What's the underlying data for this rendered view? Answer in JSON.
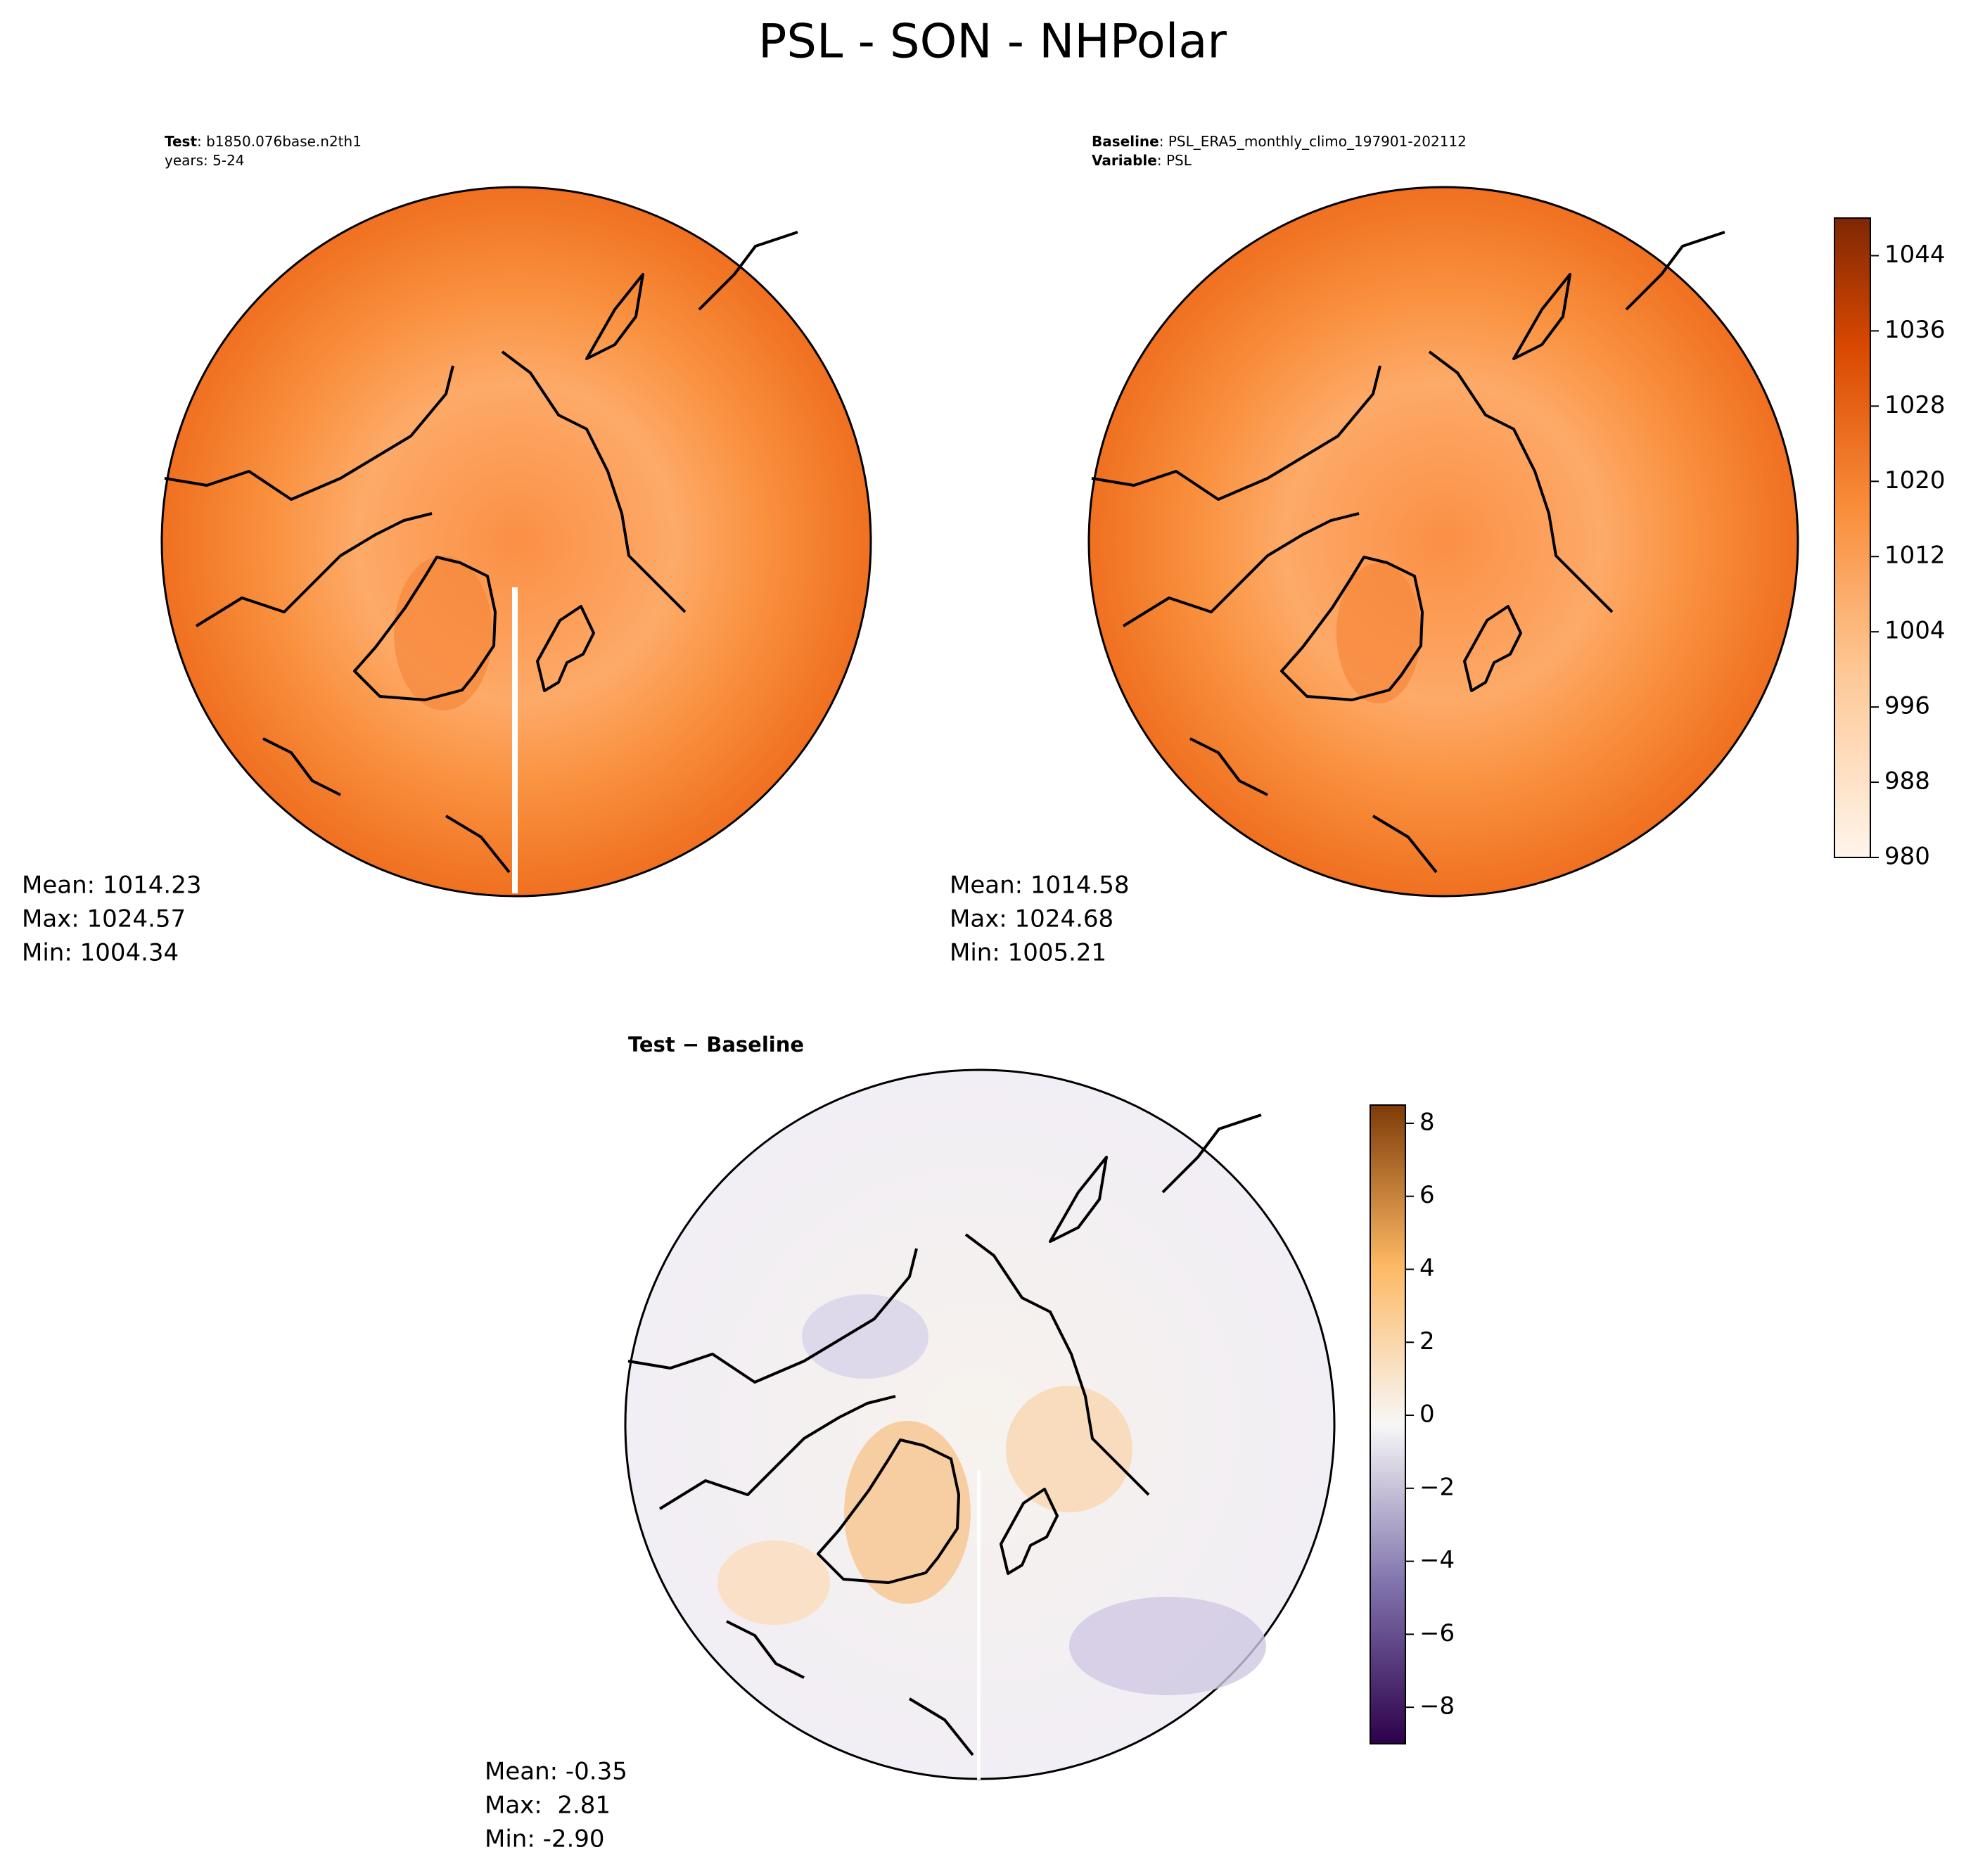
{
  "title": "PSL - SON - NHPolar",
  "panels": [
    {
      "header": [
        {
          "label": "Test",
          "text": ": b1850.076base.n2th1"
        },
        {
          "text": "years: 5-24"
        }
      ],
      "stats": [
        "Mean: 1014.23",
        "Max: 1024.57",
        "Min: 1004.34"
      ]
    },
    {
      "header": [
        {
          "label": "Baseline",
          "text": ": PSL_ERA5_monthly_climo_197901-202112"
        },
        {
          "label": "Variable",
          "text": ": PSL"
        }
      ],
      "stats": [
        "Mean: 1014.58",
        "Max: 1024.68",
        "Min: 1005.21"
      ]
    },
    {
      "header": [
        {
          "label": "Test − Baseline"
        }
      ],
      "stats": [
        "Mean: -0.35",
        "Max:  2.81",
        "Min: -2.90"
      ]
    }
  ],
  "colorbars": [
    {
      "lim": [
        980,
        1048
      ],
      "ticks": [
        980,
        988,
        996,
        1004,
        1012,
        1020,
        1028,
        1036,
        1044
      ]
    },
    {
      "lim": [
        -9,
        8.5
      ],
      "ticks": [
        {
          "value": -8,
          "label": "−8"
        },
        {
          "value": -6,
          "label": "−6"
        },
        {
          "value": -4,
          "label": "−4"
        },
        {
          "value": -2,
          "label": "−2"
        },
        0,
        2,
        4,
        6,
        8
      ]
    }
  ]
}
